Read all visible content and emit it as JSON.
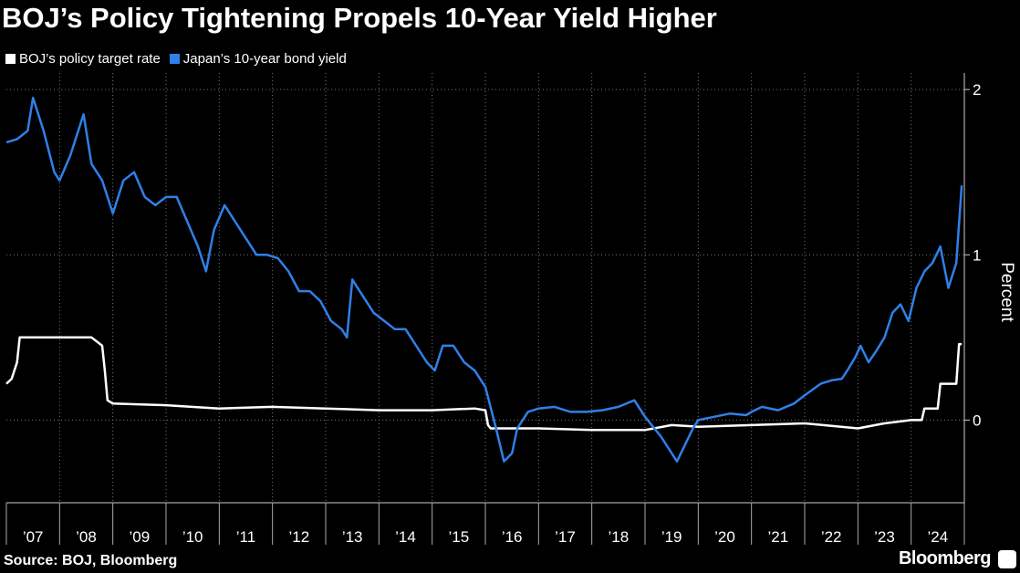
{
  "chart_data": {
    "type": "line",
    "title": "BOJ’s Policy Tightening Propels 10-Year Yield Higher",
    "ylabel": "Percent",
    "ylim": [
      -0.5,
      2.1
    ],
    "yticks": [
      0,
      1,
      2
    ],
    "xlim": [
      2007.0,
      2025.0
    ],
    "x_tick_labels": [
      "’07",
      "’08",
      "’09",
      "’10",
      "’11",
      "’12",
      "’13",
      "’14",
      "’15",
      "’16",
      "’17",
      "’18",
      "’19",
      "’20",
      "’21",
      "’22",
      "’23",
      "’24"
    ],
    "series": [
      {
        "name": "BOJ’s policy target rate",
        "color": "#ffffff",
        "x": [
          2007.0,
          2007.1,
          2007.2,
          2007.25,
          2008.0,
          2008.5,
          2008.6,
          2008.8,
          2008.85,
          2008.9,
          2009.0,
          2010.0,
          2011.0,
          2012.0,
          2013.0,
          2014.0,
          2015.0,
          2015.8,
          2016.0,
          2016.05,
          2016.1,
          2017.0,
          2018.0,
          2019.0,
          2019.5,
          2020.0,
          2021.0,
          2022.0,
          2023.0,
          2023.5,
          2024.0,
          2024.2,
          2024.25,
          2024.5,
          2024.55,
          2024.85,
          2024.9,
          2024.95
        ],
        "values": [
          0.22,
          0.25,
          0.35,
          0.5,
          0.5,
          0.5,
          0.5,
          0.45,
          0.3,
          0.12,
          0.1,
          0.09,
          0.07,
          0.08,
          0.07,
          0.06,
          0.06,
          0.07,
          0.06,
          -0.03,
          -0.05,
          -0.05,
          -0.06,
          -0.06,
          -0.03,
          -0.04,
          -0.03,
          -0.02,
          -0.05,
          -0.02,
          0.0,
          0.0,
          0.07,
          0.07,
          0.22,
          0.22,
          0.46,
          0.46
        ]
      },
      {
        "name": "Japan’s 10-year bond yield",
        "color": "#2f80e8",
        "x": [
          2007.0,
          2007.2,
          2007.4,
          2007.5,
          2007.7,
          2007.9,
          2008.0,
          2008.2,
          2008.45,
          2008.6,
          2008.8,
          2009.0,
          2009.2,
          2009.4,
          2009.6,
          2009.8,
          2010.0,
          2010.2,
          2010.4,
          2010.6,
          2010.75,
          2010.9,
          2011.1,
          2011.3,
          2011.5,
          2011.7,
          2011.9,
          2012.1,
          2012.3,
          2012.5,
          2012.7,
          2012.9,
          2013.1,
          2013.3,
          2013.4,
          2013.5,
          2013.7,
          2013.9,
          2014.1,
          2014.3,
          2014.5,
          2014.7,
          2014.9,
          2015.05,
          2015.2,
          2015.4,
          2015.6,
          2015.8,
          2016.0,
          2016.2,
          2016.35,
          2016.5,
          2016.6,
          2016.8,
          2017.0,
          2017.3,
          2017.6,
          2017.9,
          2018.2,
          2018.5,
          2018.8,
          2019.0,
          2019.3,
          2019.6,
          2019.75,
          2019.9,
          2020.0,
          2020.3,
          2020.6,
          2020.9,
          2021.0,
          2021.2,
          2021.5,
          2021.8,
          2022.0,
          2022.3,
          2022.5,
          2022.7,
          2022.8,
          2022.95,
          2023.05,
          2023.2,
          2023.35,
          2023.5,
          2023.65,
          2023.8,
          2023.95,
          2024.1,
          2024.25,
          2024.4,
          2024.55,
          2024.7,
          2024.85,
          2024.95
        ],
        "values": [
          1.68,
          1.7,
          1.75,
          1.95,
          1.75,
          1.5,
          1.45,
          1.6,
          1.85,
          1.55,
          1.45,
          1.25,
          1.45,
          1.5,
          1.35,
          1.3,
          1.35,
          1.35,
          1.2,
          1.05,
          0.9,
          1.15,
          1.3,
          1.2,
          1.1,
          1.0,
          1.0,
          0.98,
          0.9,
          0.78,
          0.78,
          0.72,
          0.6,
          0.55,
          0.5,
          0.85,
          0.75,
          0.65,
          0.6,
          0.55,
          0.55,
          0.45,
          0.35,
          0.3,
          0.45,
          0.45,
          0.35,
          0.3,
          0.2,
          -0.05,
          -0.25,
          -0.2,
          -0.05,
          0.05,
          0.07,
          0.08,
          0.05,
          0.05,
          0.06,
          0.08,
          0.12,
          0.02,
          -0.1,
          -0.25,
          -0.15,
          -0.05,
          0.0,
          0.02,
          0.04,
          0.03,
          0.05,
          0.08,
          0.06,
          0.1,
          0.15,
          0.22,
          0.24,
          0.25,
          0.3,
          0.38,
          0.45,
          0.35,
          0.42,
          0.5,
          0.65,
          0.7,
          0.6,
          0.8,
          0.9,
          0.95,
          1.05,
          0.8,
          0.95,
          1.42
        ]
      }
    ]
  },
  "footer": {
    "source": "Source: BOJ, Bloomberg",
    "brand": "Bloomberg"
  }
}
